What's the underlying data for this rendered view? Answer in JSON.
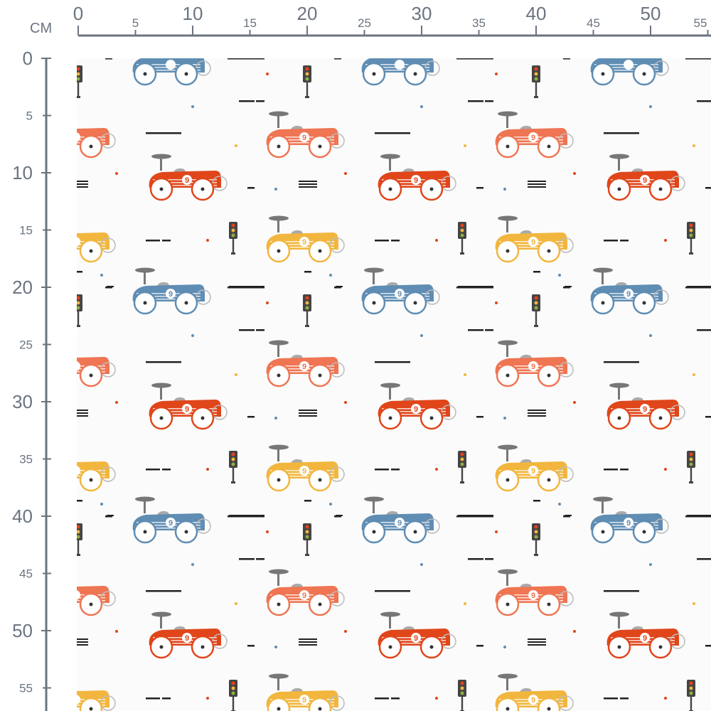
{
  "ruler": {
    "unit": "CM",
    "top_labels": [
      "0",
      "5",
      "10",
      "15",
      "20",
      "25",
      "30",
      "35",
      "40",
      "45",
      "50",
      "55"
    ],
    "left_labels": [
      "0",
      "5",
      "10",
      "15",
      "20",
      "25",
      "30",
      "35",
      "40",
      "45",
      "50",
      "55"
    ]
  },
  "fabric": {
    "background": "#fbfbfb",
    "car_number": "9",
    "colors": {
      "blue_car": "#5f8db3",
      "coral_car": "#ef7553",
      "red_car": "#e0461a",
      "yellow_car": "#f2b63e",
      "ruler": "#6b7480",
      "dash": "#222222"
    }
  }
}
